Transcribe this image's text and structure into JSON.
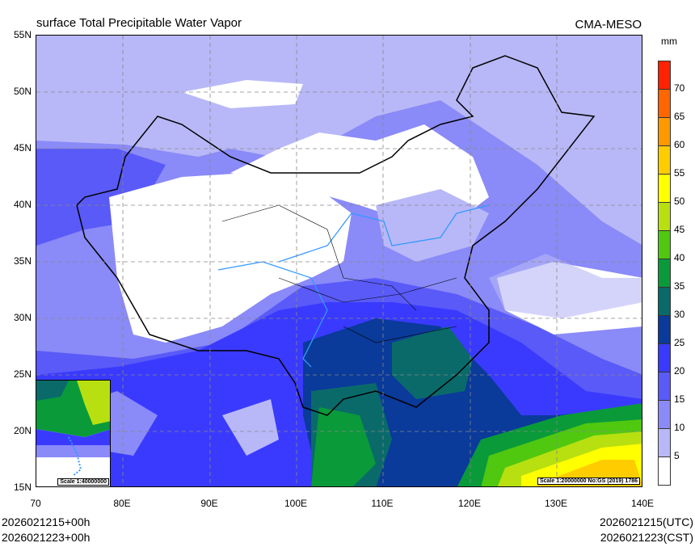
{
  "header": {
    "title": "surface Total Precipitable Water Vapor",
    "brand": "CMA-MESO"
  },
  "axes": {
    "lat_labels": [
      "55N",
      "50N",
      "45N",
      "40N",
      "35N",
      "30N",
      "25N",
      "20N",
      "15N"
    ],
    "lon_labels": [
      "70",
      "80E",
      "90E",
      "100E",
      "110E",
      "120E",
      "130E",
      "140E"
    ]
  },
  "colorbar": {
    "unit": "mm",
    "labels": [
      "70",
      "65",
      "60",
      "55",
      "50",
      "45",
      "40",
      "35",
      "30",
      "25",
      "20",
      "15",
      "10",
      "5"
    ],
    "colors": [
      "#ff2200",
      "#ff6600",
      "#ff9900",
      "#ffcc00",
      "#ffff00",
      "#b8e010",
      "#50c810",
      "#0a9a3a",
      "#0a6a6a",
      "#0a3a9a",
      "#3a3aff",
      "#5a5af8",
      "#8a8af8",
      "#b8b8f8",
      "#ffffff"
    ]
  },
  "map": {
    "inset_scale": "Scale 1:40000000",
    "main_scale": "Scale 1:20000000 No:GS (2019) 1786"
  },
  "footer": {
    "left_line1": "2026021215+00h",
    "left_line2": "2026021223+00h",
    "right_line1": "2026021215(UTC)",
    "right_line2": "2026021223(CST)"
  }
}
